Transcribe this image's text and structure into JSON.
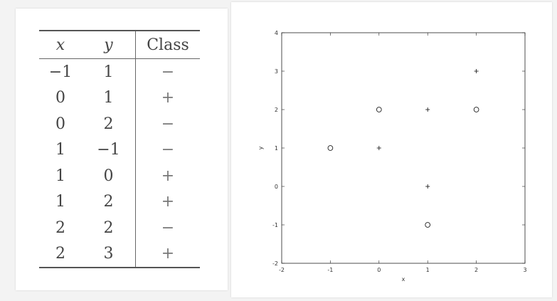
{
  "table": {
    "headers": [
      "x",
      "y",
      "Class"
    ],
    "rows": [
      [
        "−1",
        "1",
        "−"
      ],
      [
        "0",
        "1",
        "+"
      ],
      [
        "0",
        "2",
        "−"
      ],
      [
        "1",
        "−1",
        "−"
      ],
      [
        "1",
        "0",
        "+"
      ],
      [
        "1",
        "2",
        "+"
      ],
      [
        "2",
        "2",
        "−"
      ],
      [
        "2",
        "3",
        "+"
      ]
    ]
  },
  "chart_data": {
    "type": "scatter",
    "xlabel": "x",
    "ylabel": "y",
    "xlim": [
      -2,
      3
    ],
    "ylim": [
      -2,
      4
    ],
    "x_ticks": [
      -2,
      -1,
      0,
      1,
      2,
      3
    ],
    "y_ticks": [
      -2,
      -1,
      0,
      1,
      2,
      3,
      4
    ],
    "grid": false,
    "series": [
      {
        "marker": "o",
        "points": [
          [
            -1,
            1
          ],
          [
            0,
            2
          ],
          [
            1,
            -1
          ],
          [
            2,
            2
          ]
        ]
      },
      {
        "marker": "+",
        "points": [
          [
            0,
            1
          ],
          [
            1,
            2
          ],
          [
            1,
            0
          ],
          [
            2,
            3
          ]
        ]
      }
    ]
  }
}
